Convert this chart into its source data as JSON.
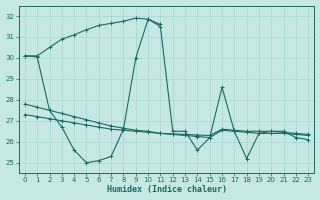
{
  "xlabel": "Humidex (Indice chaleur)",
  "xlim": [
    -0.5,
    23.5
  ],
  "ylim": [
    24.5,
    32.5
  ],
  "yticks": [
    25,
    26,
    27,
    28,
    29,
    30,
    31,
    32
  ],
  "xticks": [
    0,
    1,
    2,
    3,
    4,
    5,
    6,
    7,
    8,
    9,
    10,
    11,
    12,
    13,
    14,
    15,
    16,
    17,
    18,
    19,
    20,
    21,
    22,
    23
  ],
  "bg_color": "#c5e8e4",
  "grid_color": "#a8d4d0",
  "line_color": "#1a6b60",
  "line1_x": [
    0,
    1,
    2,
    3,
    4,
    5,
    6,
    7,
    8,
    9,
    10,
    11
  ],
  "line1_y": [
    30.1,
    30.1,
    30.5,
    30.9,
    31.1,
    31.35,
    31.55,
    31.65,
    31.75,
    31.9,
    31.85,
    31.6
  ],
  "line2_x": [
    0,
    1,
    2,
    3,
    4,
    5,
    6,
    7,
    8,
    9,
    10,
    11,
    12,
    13,
    14,
    15,
    16,
    17,
    18,
    19,
    20,
    21,
    22,
    23
  ],
  "line2_y": [
    30.1,
    30.05,
    27.5,
    26.7,
    25.6,
    25.0,
    25.1,
    25.3,
    26.6,
    30.0,
    31.85,
    31.5,
    26.5,
    26.5,
    25.6,
    26.2,
    28.6,
    26.5,
    25.2,
    26.4,
    26.5,
    26.5,
    26.2,
    26.1
  ],
  "line3_x": [
    0,
    1,
    2,
    3,
    4,
    5,
    6,
    7,
    8,
    9,
    10,
    11,
    12,
    13,
    14,
    15,
    16,
    17,
    18,
    19,
    20,
    21,
    22,
    23
  ],
  "line3_y": [
    27.8,
    27.65,
    27.5,
    27.35,
    27.2,
    27.05,
    26.9,
    26.75,
    26.65,
    26.55,
    26.5,
    26.4,
    26.35,
    26.3,
    26.25,
    26.2,
    26.55,
    26.5,
    26.45,
    26.4,
    26.4,
    26.4,
    26.35,
    26.3
  ],
  "line4_x": [
    0,
    1,
    2,
    3,
    4,
    5,
    6,
    7,
    8,
    9,
    10,
    11,
    12,
    13,
    14,
    15,
    16,
    17,
    18,
    19,
    20,
    21,
    22,
    23
  ],
  "line4_y": [
    27.3,
    27.2,
    27.1,
    27.0,
    26.9,
    26.8,
    26.7,
    26.6,
    26.55,
    26.5,
    26.45,
    26.4,
    26.38,
    26.35,
    26.32,
    26.3,
    26.6,
    26.55,
    26.5,
    26.5,
    26.5,
    26.45,
    26.4,
    26.35
  ]
}
